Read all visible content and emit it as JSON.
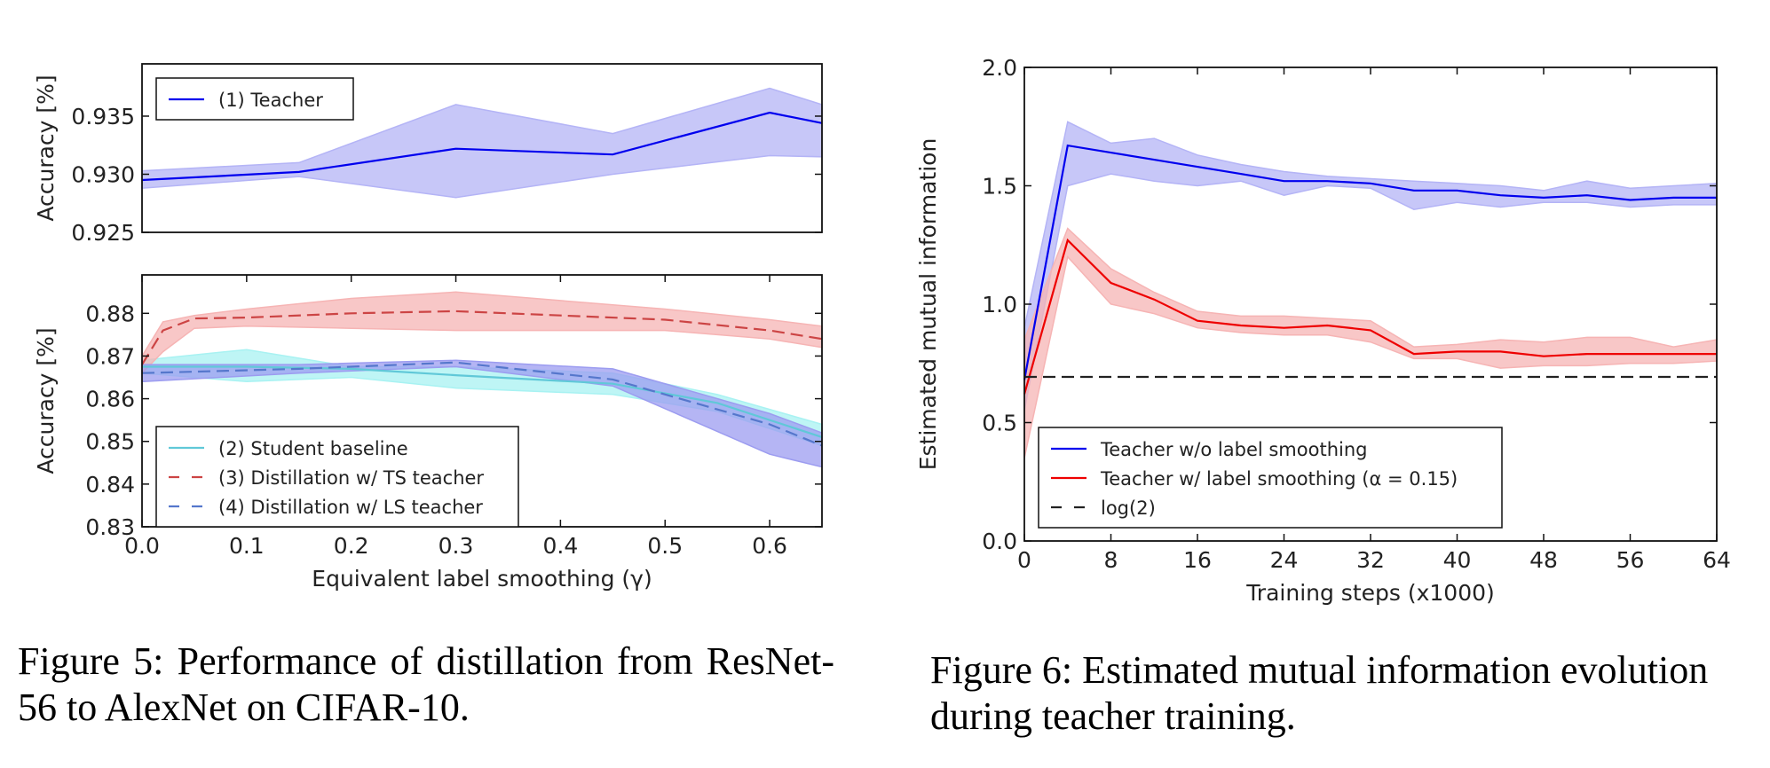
{
  "captions": {
    "fig5": "Figure 5:  Performance of distillation from ResNet-56 to AlexNet on CIFAR-10.",
    "fig6": "Figure 6: Estimated mutual information evolution during teacher training."
  },
  "chart_data": [
    {
      "type": "line",
      "ylabel": "Accuracy [%]",
      "xlim": [
        0,
        0.65
      ],
      "ylim": [
        0.925,
        0.9395
      ],
      "yticks": [
        "0.925",
        "0.930",
        "0.935"
      ],
      "grid": false,
      "legend_position": "top-left",
      "series": [
        {
          "name": "(1) Teacher",
          "color": "#0000ee",
          "style": "solid",
          "x": [
            0.0,
            0.15,
            0.3,
            0.45,
            0.6,
            0.65
          ],
          "y": [
            0.9295,
            0.9302,
            0.9322,
            0.9317,
            0.9353,
            0.9344
          ],
          "lower": [
            0.9288,
            0.9298,
            0.928,
            0.93,
            0.9316,
            0.9315
          ],
          "upper": [
            0.9303,
            0.931,
            0.936,
            0.9335,
            0.9374,
            0.936
          ],
          "fill": "#b4b4f6"
        }
      ]
    },
    {
      "type": "line",
      "xlabel": "Equivalent label smoothing (γ)",
      "ylabel": "Accuracy [%]",
      "xlim": [
        0,
        0.65
      ],
      "ylim": [
        0.83,
        0.889
      ],
      "xticks": [
        "0.0",
        "0.1",
        "0.2",
        "0.3",
        "0.4",
        "0.5",
        "0.6"
      ],
      "yticks": [
        "0.83",
        "0.84",
        "0.85",
        "0.86",
        "0.87",
        "0.88"
      ],
      "grid": false,
      "legend_position": "bottom-left",
      "series": [
        {
          "name": "(2) Student baseline",
          "color": "#60c8d8",
          "style": "solid",
          "x": [
            0.0,
            0.1,
            0.2,
            0.3,
            0.45,
            0.55,
            0.65
          ],
          "y": [
            0.8675,
            0.8675,
            0.867,
            0.8655,
            0.8635,
            0.859,
            0.851
          ],
          "lower": [
            0.866,
            0.864,
            0.865,
            0.8625,
            0.861,
            0.857,
            0.849
          ],
          "upper": [
            0.869,
            0.8715,
            0.8675,
            0.8675,
            0.866,
            0.861,
            0.854
          ],
          "fill": "#a8f2f2"
        },
        {
          "name": "(3) Distillation w/ TS teacher",
          "color": "#cc4444",
          "style": "dashed",
          "x": [
            0.0,
            0.02,
            0.05,
            0.1,
            0.2,
            0.3,
            0.4,
            0.5,
            0.6,
            0.65
          ],
          "y": [
            0.868,
            0.876,
            0.8788,
            0.879,
            0.88,
            0.8805,
            0.8795,
            0.8785,
            0.876,
            0.874
          ],
          "lower": [
            0.866,
            0.871,
            0.8765,
            0.877,
            0.8765,
            0.876,
            0.876,
            0.876,
            0.874,
            0.872
          ],
          "upper": [
            0.87,
            0.878,
            0.8795,
            0.881,
            0.8835,
            0.885,
            0.883,
            0.881,
            0.8785,
            0.877
          ],
          "fill": "#f6b4b4"
        },
        {
          "name": "(4) Distillation w/ LS teacher",
          "color": "#5577cc",
          "style": "dashed",
          "x": [
            0.0,
            0.15,
            0.3,
            0.45,
            0.6,
            0.65
          ],
          "y": [
            0.866,
            0.867,
            0.8685,
            0.8645,
            0.854,
            0.849
          ],
          "lower": [
            0.864,
            0.866,
            0.8675,
            0.863,
            0.847,
            0.844
          ],
          "upper": [
            0.868,
            0.868,
            0.869,
            0.867,
            0.8565,
            0.852
          ],
          "fill": "#9c9cf0"
        }
      ]
    },
    {
      "type": "line",
      "xlabel": "Training steps (x1000)",
      "ylabel": "Estimated mutual information",
      "xlim": [
        0,
        64
      ],
      "ylim": [
        0,
        2
      ],
      "xticks": [
        "0",
        "8",
        "16",
        "24",
        "32",
        "40",
        "48",
        "56",
        "64"
      ],
      "yticks": [
        "0.0",
        "0.5",
        "1.0",
        "1.5",
        "2.0"
      ],
      "grid": false,
      "legend_position": "bottom-left",
      "series": [
        {
          "name": "Teacher w/o label smoothing",
          "color": "#0000ee",
          "style": "solid",
          "x": [
            0,
            4,
            8,
            12,
            16,
            20,
            24,
            28,
            32,
            36,
            40,
            44,
            48,
            52,
            56,
            60,
            64
          ],
          "y": [
            0.68,
            1.67,
            1.64,
            1.61,
            1.58,
            1.55,
            1.52,
            1.52,
            1.51,
            1.48,
            1.48,
            1.46,
            1.45,
            1.46,
            1.44,
            1.45,
            1.45
          ],
          "lower": [
            0.55,
            1.5,
            1.55,
            1.52,
            1.5,
            1.52,
            1.46,
            1.5,
            1.49,
            1.4,
            1.43,
            1.41,
            1.43,
            1.43,
            1.41,
            1.42,
            1.42
          ],
          "upper": [
            0.9,
            1.77,
            1.68,
            1.7,
            1.63,
            1.59,
            1.56,
            1.54,
            1.53,
            1.52,
            1.51,
            1.5,
            1.48,
            1.52,
            1.49,
            1.5,
            1.51
          ],
          "fill": "#b4b4f6"
        },
        {
          "name": "Teacher w/ label smoothing (α = 0.15)",
          "color": "#ee0000",
          "style": "solid",
          "x": [
            0,
            4,
            8,
            12,
            16,
            20,
            24,
            28,
            32,
            36,
            40,
            44,
            48,
            52,
            56,
            60,
            64
          ],
          "y": [
            0.62,
            1.27,
            1.09,
            1.02,
            0.93,
            0.91,
            0.9,
            0.91,
            0.89,
            0.79,
            0.8,
            0.8,
            0.78,
            0.79,
            0.79,
            0.79,
            0.79
          ],
          "lower": [
            0.35,
            1.2,
            1.0,
            0.96,
            0.9,
            0.88,
            0.87,
            0.87,
            0.84,
            0.77,
            0.77,
            0.73,
            0.74,
            0.74,
            0.75,
            0.75,
            0.76
          ],
          "upper": [
            0.85,
            1.32,
            1.15,
            1.05,
            0.97,
            0.95,
            0.95,
            0.94,
            0.93,
            0.82,
            0.83,
            0.85,
            0.84,
            0.86,
            0.86,
            0.82,
            0.85
          ],
          "fill": "#f6b4b4"
        },
        {
          "name": "log(2)",
          "color": "#222222",
          "style": "dashed",
          "x": [
            0,
            64
          ],
          "y": [
            0.693,
            0.693
          ]
        }
      ]
    }
  ]
}
